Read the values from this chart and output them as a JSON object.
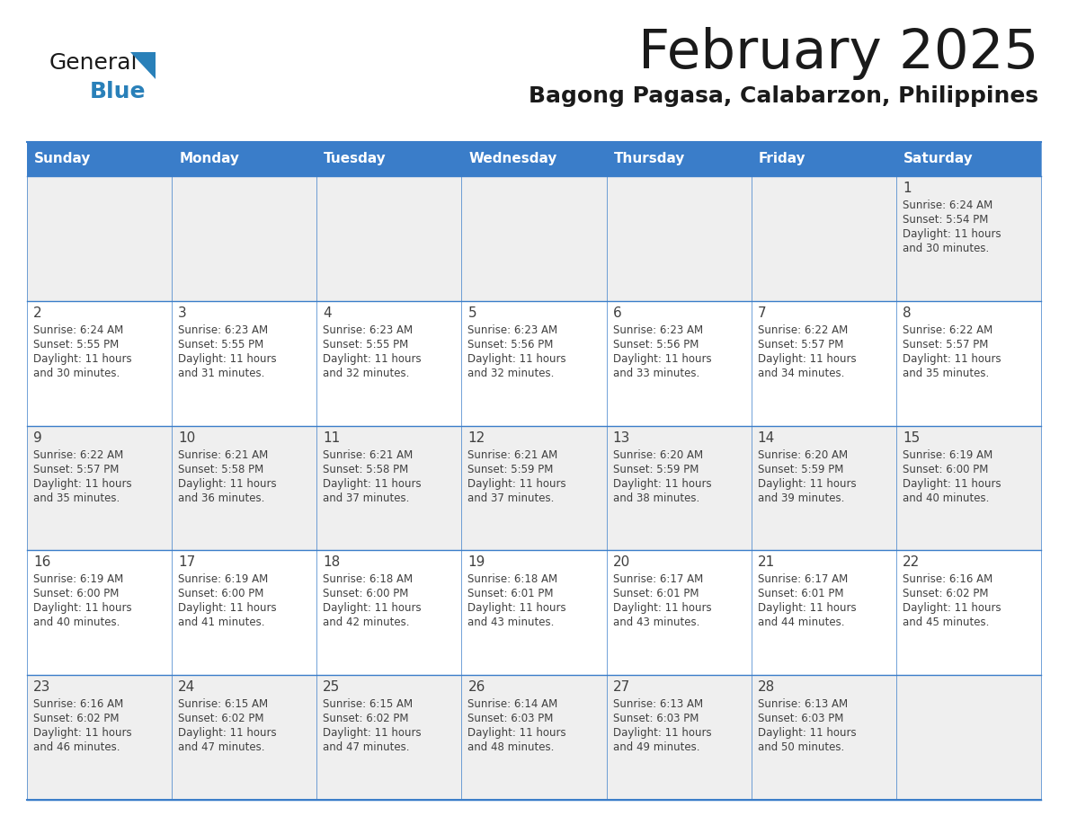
{
  "title": "February 2025",
  "subtitle": "Bagong Pagasa, Calabarzon, Philippines",
  "days_of_week": [
    "Sunday",
    "Monday",
    "Tuesday",
    "Wednesday",
    "Thursday",
    "Friday",
    "Saturday"
  ],
  "header_bg": "#3A7DC9",
  "header_text_color": "#FFFFFF",
  "cell_bg_row0": "#EFEFEF",
  "cell_bg_row1": "#FFFFFF",
  "cell_bg_row2": "#EFEFEF",
  "cell_bg_row3": "#FFFFFF",
  "cell_bg_row4": "#EFEFEF",
  "cell_text_color": "#404040",
  "day_num_color": "#404040",
  "border_color": "#3A7DC9",
  "title_color": "#1a1a1a",
  "subtitle_color": "#1a1a1a",
  "logo_general_color": "#1a1a1a",
  "logo_blue_color": "#2980B9",
  "logo_triangle_color": "#2980B9",
  "calendar_data": [
    {
      "day": 1,
      "row": 0,
      "col": 6,
      "sunrise": "6:24 AM",
      "sunset": "5:54 PM",
      "daylight_suffix": "30 minutes."
    },
    {
      "day": 2,
      "row": 1,
      "col": 0,
      "sunrise": "6:24 AM",
      "sunset": "5:55 PM",
      "daylight_suffix": "30 minutes."
    },
    {
      "day": 3,
      "row": 1,
      "col": 1,
      "sunrise": "6:23 AM",
      "sunset": "5:55 PM",
      "daylight_suffix": "31 minutes."
    },
    {
      "day": 4,
      "row": 1,
      "col": 2,
      "sunrise": "6:23 AM",
      "sunset": "5:55 PM",
      "daylight_suffix": "32 minutes."
    },
    {
      "day": 5,
      "row": 1,
      "col": 3,
      "sunrise": "6:23 AM",
      "sunset": "5:56 PM",
      "daylight_suffix": "32 minutes."
    },
    {
      "day": 6,
      "row": 1,
      "col": 4,
      "sunrise": "6:23 AM",
      "sunset": "5:56 PM",
      "daylight_suffix": "33 minutes."
    },
    {
      "day": 7,
      "row": 1,
      "col": 5,
      "sunrise": "6:22 AM",
      "sunset": "5:57 PM",
      "daylight_suffix": "34 minutes."
    },
    {
      "day": 8,
      "row": 1,
      "col": 6,
      "sunrise": "6:22 AM",
      "sunset": "5:57 PM",
      "daylight_suffix": "35 minutes."
    },
    {
      "day": 9,
      "row": 2,
      "col": 0,
      "sunrise": "6:22 AM",
      "sunset": "5:57 PM",
      "daylight_suffix": "35 minutes."
    },
    {
      "day": 10,
      "row": 2,
      "col": 1,
      "sunrise": "6:21 AM",
      "sunset": "5:58 PM",
      "daylight_suffix": "36 minutes."
    },
    {
      "day": 11,
      "row": 2,
      "col": 2,
      "sunrise": "6:21 AM",
      "sunset": "5:58 PM",
      "daylight_suffix": "37 minutes."
    },
    {
      "day": 12,
      "row": 2,
      "col": 3,
      "sunrise": "6:21 AM",
      "sunset": "5:59 PM",
      "daylight_suffix": "37 minutes."
    },
    {
      "day": 13,
      "row": 2,
      "col": 4,
      "sunrise": "6:20 AM",
      "sunset": "5:59 PM",
      "daylight_suffix": "38 minutes."
    },
    {
      "day": 14,
      "row": 2,
      "col": 5,
      "sunrise": "6:20 AM",
      "sunset": "5:59 PM",
      "daylight_suffix": "39 minutes."
    },
    {
      "day": 15,
      "row": 2,
      "col": 6,
      "sunrise": "6:19 AM",
      "sunset": "6:00 PM",
      "daylight_suffix": "40 minutes."
    },
    {
      "day": 16,
      "row": 3,
      "col": 0,
      "sunrise": "6:19 AM",
      "sunset": "6:00 PM",
      "daylight_suffix": "40 minutes."
    },
    {
      "day": 17,
      "row": 3,
      "col": 1,
      "sunrise": "6:19 AM",
      "sunset": "6:00 PM",
      "daylight_suffix": "41 minutes."
    },
    {
      "day": 18,
      "row": 3,
      "col": 2,
      "sunrise": "6:18 AM",
      "sunset": "6:00 PM",
      "daylight_suffix": "42 minutes."
    },
    {
      "day": 19,
      "row": 3,
      "col": 3,
      "sunrise": "6:18 AM",
      "sunset": "6:01 PM",
      "daylight_suffix": "43 minutes."
    },
    {
      "day": 20,
      "row": 3,
      "col": 4,
      "sunrise": "6:17 AM",
      "sunset": "6:01 PM",
      "daylight_suffix": "43 minutes."
    },
    {
      "day": 21,
      "row": 3,
      "col": 5,
      "sunrise": "6:17 AM",
      "sunset": "6:01 PM",
      "daylight_suffix": "44 minutes."
    },
    {
      "day": 22,
      "row": 3,
      "col": 6,
      "sunrise": "6:16 AM",
      "sunset": "6:02 PM",
      "daylight_suffix": "45 minutes."
    },
    {
      "day": 23,
      "row": 4,
      "col": 0,
      "sunrise": "6:16 AM",
      "sunset": "6:02 PM",
      "daylight_suffix": "46 minutes."
    },
    {
      "day": 24,
      "row": 4,
      "col": 1,
      "sunrise": "6:15 AM",
      "sunset": "6:02 PM",
      "daylight_suffix": "47 minutes."
    },
    {
      "day": 25,
      "row": 4,
      "col": 2,
      "sunrise": "6:15 AM",
      "sunset": "6:02 PM",
      "daylight_suffix": "47 minutes."
    },
    {
      "day": 26,
      "row": 4,
      "col": 3,
      "sunrise": "6:14 AM",
      "sunset": "6:03 PM",
      "daylight_suffix": "48 minutes."
    },
    {
      "day": 27,
      "row": 4,
      "col": 4,
      "sunrise": "6:13 AM",
      "sunset": "6:03 PM",
      "daylight_suffix": "49 minutes."
    },
    {
      "day": 28,
      "row": 4,
      "col": 5,
      "sunrise": "6:13 AM",
      "sunset": "6:03 PM",
      "daylight_suffix": "50 minutes."
    }
  ]
}
